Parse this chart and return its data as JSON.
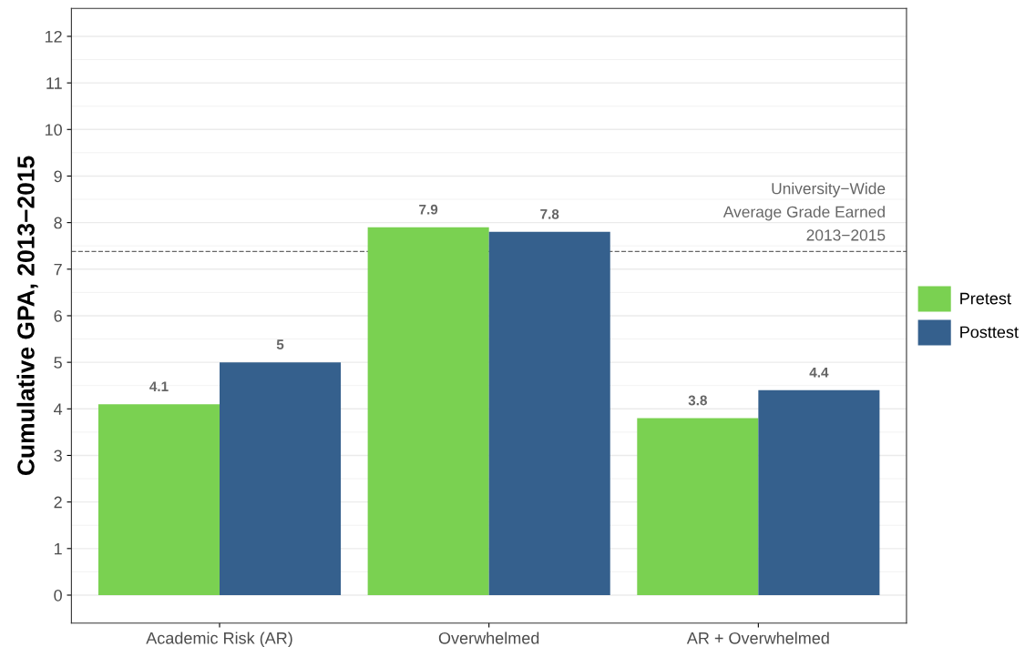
{
  "chart_data": {
    "type": "bar",
    "ylabel": "Cumulative GPA, 2013−2015",
    "categories": [
      "Academic Risk (AR)",
      "Overwhelmed",
      "AR + Overwhelmed"
    ],
    "series": [
      {
        "name": "Pretest",
        "color": "#7ad151",
        "values": [
          4.1,
          7.9,
          3.8
        ]
      },
      {
        "name": "Posttest",
        "color": "#35608d",
        "values": [
          5,
          7.8,
          4.4
        ]
      }
    ],
    "ylim": [
      -0.6,
      12.6
    ],
    "yticks": [
      0,
      1,
      2,
      3,
      4,
      5,
      6,
      7,
      8,
      9,
      10,
      11,
      12
    ],
    "ref_lines": [
      {
        "axis": "y",
        "value": 7.38,
        "label": "University−Wide\nAverage Grade Earned\n2013−2015",
        "color": "#666666",
        "line_style": "dashed"
      }
    ],
    "data_labels": true,
    "grid": "y",
    "legend": "right"
  }
}
